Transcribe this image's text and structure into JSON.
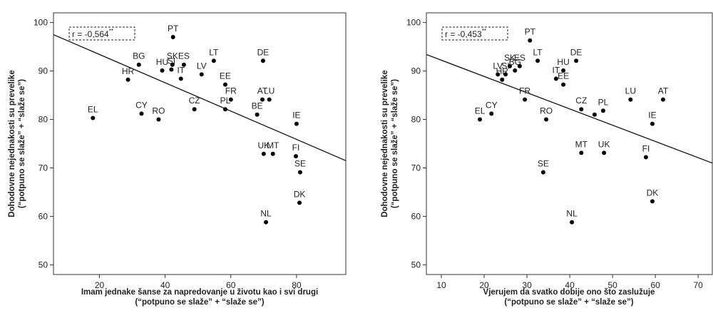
{
  "chart_data": [
    {
      "type": "scatter",
      "color": "#000000",
      "r_label": "r = -0,564",
      "r_sup": "**",
      "x_label": [
        "Imam jednake šanse za napredovanje u životu kao i svi drugi",
        "(“potpuno se slaže” + “slaže se”)"
      ],
      "y_label": [
        "Dohodovne nejednakosti su prevelike",
        "(“potpuno se slaže” + “slaže se”)"
      ],
      "xlim": [
        6,
        95
      ],
      "ylim": [
        48,
        102
      ],
      "xticks": [
        20,
        40,
        60,
        80
      ],
      "yticks": [
        50,
        60,
        70,
        80,
        90,
        100
      ],
      "categories": [
        "EL",
        "HR",
        "BG",
        "CY",
        "RO",
        "HU",
        "SI",
        "SK",
        "PT",
        "IT",
        "ES",
        "LT",
        "LV",
        "CZ",
        "EE",
        "FR",
        "PL",
        "DE",
        "AT",
        "LU",
        "BE",
        "IE",
        "MT",
        "UK",
        "FI",
        "SE",
        "DK",
        "NL"
      ],
      "x": [
        18.0,
        28.7,
        32.0,
        32.8,
        38.0,
        39.1,
        41.9,
        42.2,
        42.4,
        44.8,
        45.7,
        54.8,
        51.1,
        48.9,
        58.3,
        60.0,
        58.3,
        69.8,
        69.6,
        71.7,
        68.0,
        80.0,
        72.8,
        70.0,
        79.8,
        81.1,
        80.9,
        70.7
      ],
      "y": [
        80.3,
        88.2,
        91.3,
        81.2,
        80.0,
        90.1,
        90.3,
        91.3,
        97.0,
        88.4,
        91.3,
        92.1,
        89.3,
        82.1,
        87.2,
        84.1,
        82.1,
        92.1,
        84.1,
        84.1,
        81.0,
        79.1,
        72.9,
        72.9,
        72.4,
        69.1,
        62.8,
        58.8
      ],
      "trend_line": {
        "x": [
          6,
          95
        ],
        "y": [
          97.5,
          71.5
        ]
      }
    },
    {
      "type": "scatter",
      "color": "#000000",
      "r_label": "r = -0,453",
      "r_sup": "**",
      "x_label": [
        "Vjerujem da svatko dobije ono što zaslužuje",
        "(“potpuno se slaže” + “slaže se”)"
      ],
      "y_label": [
        "Dohodovne nejednakosti su prevelike",
        "(“potpuno se slaže” + “slaže se”)"
      ],
      "xlim": [
        6.5,
        73.3
      ],
      "ylim": [
        48,
        102
      ],
      "xticks": [
        10,
        20,
        30,
        40,
        50,
        60,
        70
      ],
      "yticks": [
        50,
        60,
        70,
        80,
        90,
        100
      ],
      "categories": [
        "EL",
        "CY",
        "LV",
        "SI",
        "HR",
        "SK",
        "ES",
        "BG",
        "PT",
        "LT",
        "FR",
        "RO",
        "IT",
        "HU",
        "EE",
        "DE",
        "CZ",
        null,
        "PL",
        "LU",
        "AT",
        "IE",
        "MT",
        "UK",
        "FI",
        "SE",
        "NL",
        "DK"
      ],
      "x": [
        19.0,
        21.7,
        23.2,
        25.0,
        24.2,
        26.0,
        28.3,
        27.2,
        30.7,
        32.5,
        29.5,
        34.5,
        36.8,
        38.5,
        38.5,
        41.5,
        42.7,
        45.8,
        47.8,
        54.2,
        61.8,
        59.3,
        42.7,
        48.0,
        57.8,
        33.8,
        40.5,
        59.3
      ],
      "y": [
        80.0,
        81.2,
        89.3,
        89.3,
        88.2,
        91.0,
        91.0,
        90.1,
        96.3,
        92.1,
        84.1,
        80.0,
        88.4,
        90.1,
        87.2,
        92.1,
        82.1,
        81.0,
        81.8,
        84.1,
        84.1,
        79.1,
        73.1,
        73.1,
        72.2,
        69.1,
        58.8,
        63.1
      ],
      "trend_line": {
        "x": [
          6.5,
          73.3
        ],
        "y": [
          93.4,
          71.0
        ]
      }
    }
  ]
}
